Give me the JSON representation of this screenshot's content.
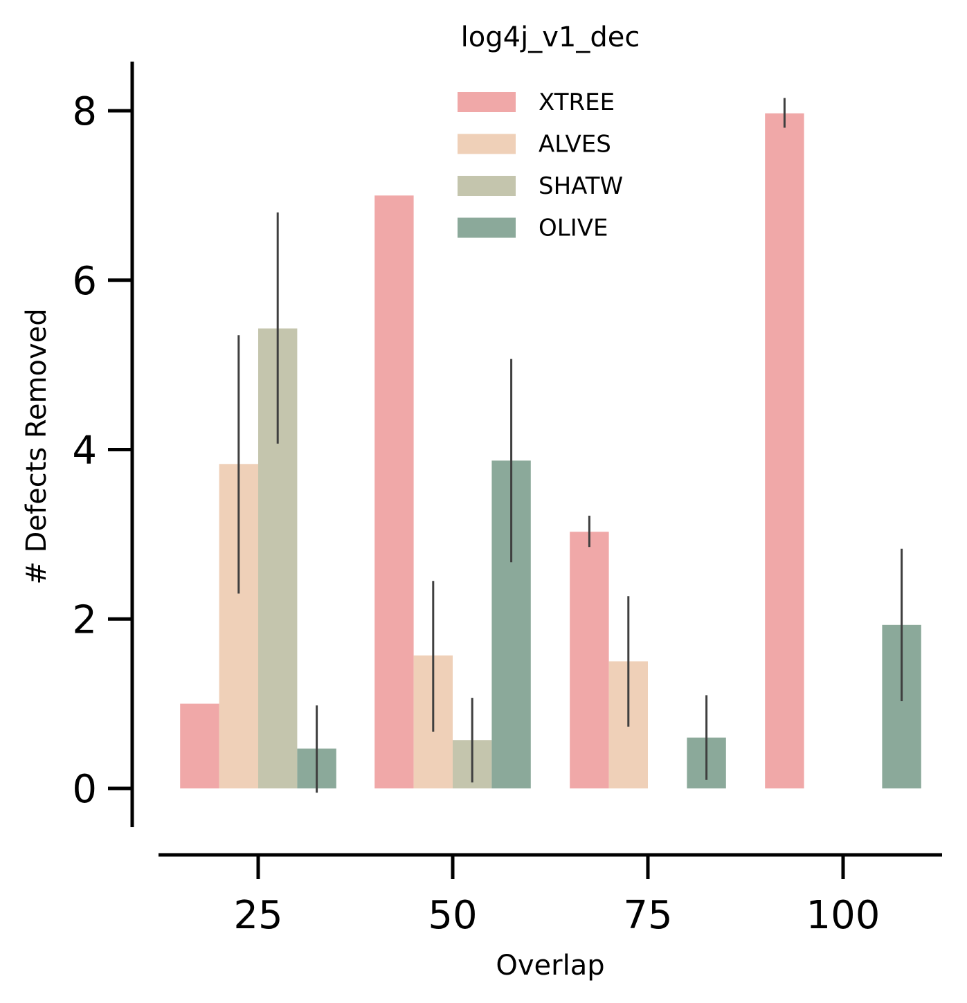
{
  "chart_data": {
    "type": "bar",
    "title": "log4j_v1_dec",
    "xlabel": "Overlap",
    "ylabel": "# Defects Removed",
    "categories": [
      "25",
      "50",
      "75",
      "100"
    ],
    "yticks": [
      0,
      2,
      4,
      6,
      8
    ],
    "ylim": [
      -0.45,
      8.55
    ],
    "grid": false,
    "legend_position": "top-center",
    "series": [
      {
        "name": "XTREE",
        "color": "#f0a8a8",
        "values": [
          1.0,
          7.0,
          3.03,
          7.97
        ],
        "errors": [
          null,
          null,
          [
            2.85,
            3.22
          ],
          [
            7.8,
            8.15
          ]
        ]
      },
      {
        "name": "ALVES",
        "color": "#efd0b8",
        "values": [
          3.83,
          1.57,
          1.5,
          0
        ],
        "errors": [
          [
            2.3,
            5.35
          ],
          [
            0.67,
            2.45
          ],
          [
            0.73,
            2.27
          ],
          null
        ]
      },
      {
        "name": "SHATW",
        "color": "#c4c5ad",
        "values": [
          5.43,
          0.57,
          0,
          0
        ],
        "errors": [
          [
            4.07,
            6.8
          ],
          [
            0.07,
            1.07
          ],
          null,
          null
        ]
      },
      {
        "name": "OLIVE",
        "color": "#8ba99a",
        "values": [
          0.47,
          3.87,
          0.6,
          1.93
        ],
        "errors": [
          [
            -0.05,
            0.98
          ],
          [
            2.67,
            5.07
          ],
          [
            0.1,
            1.1
          ],
          [
            1.03,
            2.83
          ]
        ]
      }
    ]
  }
}
